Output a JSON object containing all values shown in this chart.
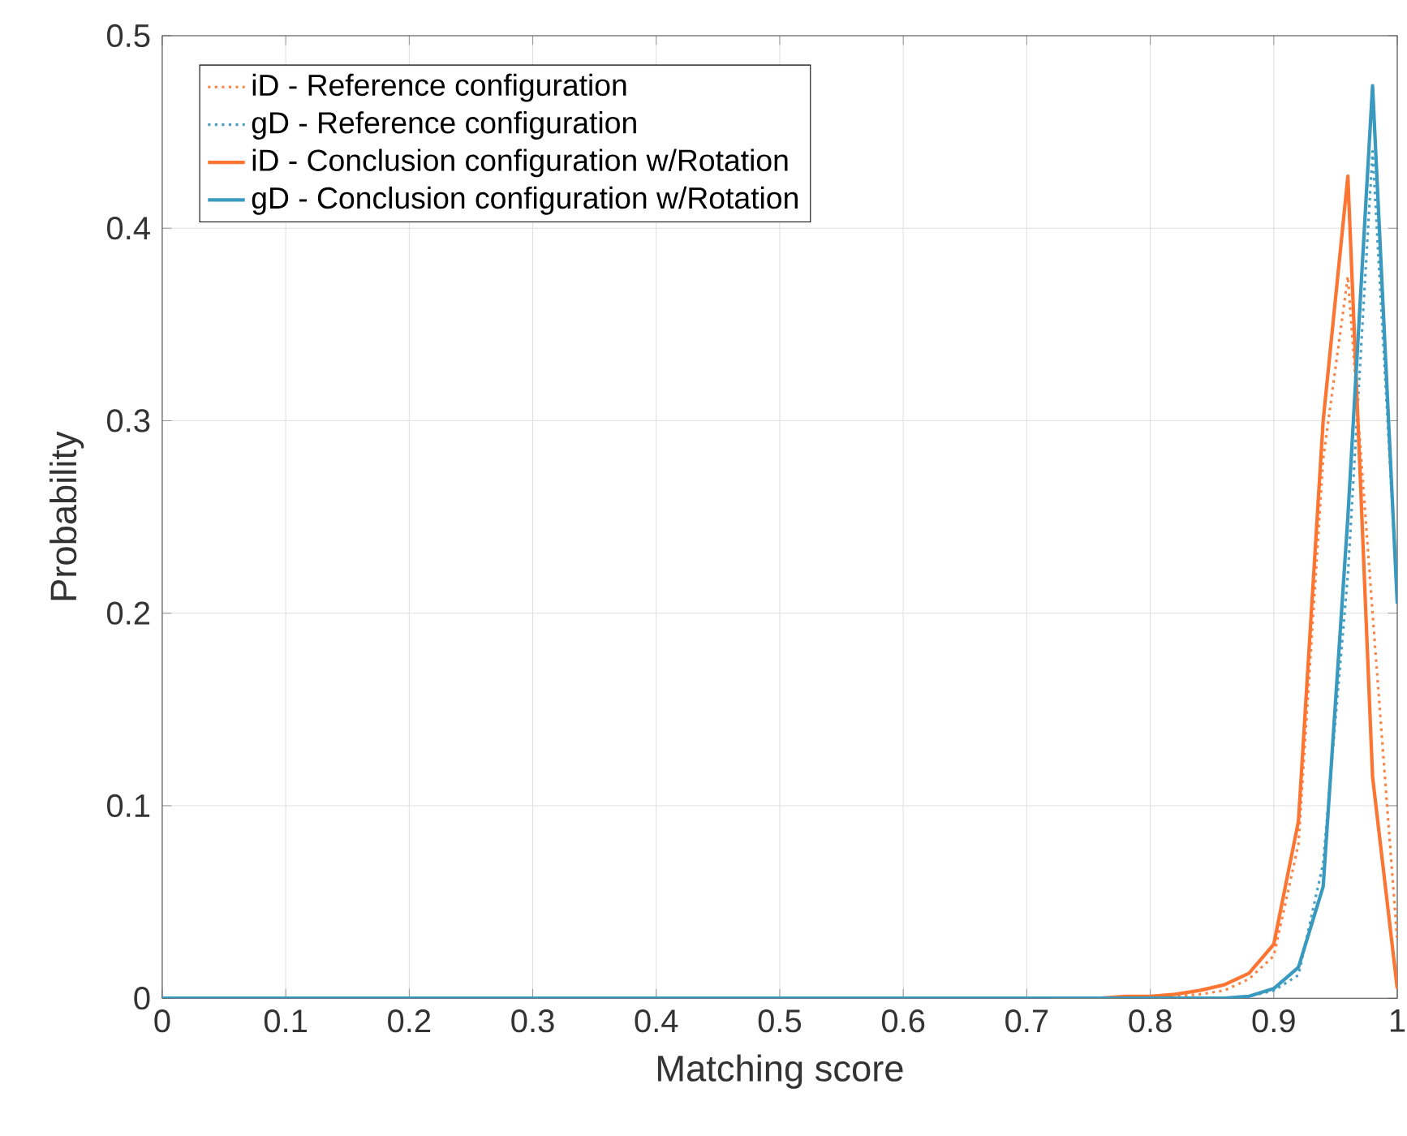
{
  "chart_data": {
    "type": "line",
    "xlabel": "Matching score",
    "ylabel": "Probability",
    "x": [
      0,
      0.02,
      0.04,
      0.06,
      0.08,
      0.1,
      0.12,
      0.14,
      0.16,
      0.18,
      0.2,
      0.22,
      0.24,
      0.26,
      0.28,
      0.3,
      0.32,
      0.34,
      0.36,
      0.38,
      0.4,
      0.42,
      0.44,
      0.46,
      0.48,
      0.5,
      0.52,
      0.54,
      0.56,
      0.58,
      0.6,
      0.62,
      0.64,
      0.66,
      0.68,
      0.7,
      0.72,
      0.74,
      0.76,
      0.78,
      0.8,
      0.82,
      0.84,
      0.86,
      0.88,
      0.9,
      0.92,
      0.94,
      0.96,
      0.98,
      1
    ],
    "series": [
      {
        "name": "iD - Reference configuration",
        "color": "#f98446",
        "line_style": "dotted",
        "values": [
          null,
          null,
          null,
          null,
          null,
          null,
          null,
          null,
          null,
          null,
          null,
          null,
          null,
          null,
          null,
          null,
          null,
          null,
          null,
          null,
          null,
          null,
          null,
          null,
          null,
          null,
          null,
          null,
          null,
          null,
          null,
          null,
          null,
          null,
          null,
          null,
          null,
          null,
          null,
          null,
          0,
          0.001,
          0.002,
          0.004,
          0.01,
          0.022,
          0.08,
          0.28,
          0.375,
          0.2,
          0.03
        ]
      },
      {
        "name": "gD - Reference configuration",
        "color": "#4a9fc2",
        "line_style": "dotted",
        "values": [
          null,
          null,
          null,
          null,
          null,
          null,
          null,
          null,
          null,
          null,
          null,
          null,
          null,
          null,
          null,
          null,
          null,
          null,
          null,
          null,
          null,
          null,
          null,
          null,
          null,
          null,
          null,
          null,
          null,
          null,
          null,
          null,
          null,
          null,
          null,
          null,
          null,
          null,
          null,
          null,
          null,
          null,
          null,
          0,
          0.001,
          0.004,
          0.012,
          0.07,
          0.22,
          0.44,
          0.21
        ]
      },
      {
        "name": "iD - Conclusion configuration w/Rotation",
        "color": "#fd7532",
        "line_style": "solid",
        "values": [
          null,
          null,
          null,
          null,
          null,
          null,
          null,
          null,
          null,
          null,
          null,
          null,
          null,
          null,
          null,
          null,
          null,
          null,
          null,
          null,
          null,
          null,
          null,
          null,
          null,
          null,
          null,
          null,
          null,
          null,
          null,
          null,
          null,
          null,
          null,
          null,
          0,
          0,
          0,
          0.001,
          0.001,
          0.002,
          0.004,
          0.007,
          0.013,
          0.028,
          0.092,
          0.3,
          0.427,
          0.115,
          0.005
        ]
      },
      {
        "name": "gD - Conclusion configuration w/Rotation",
        "color": "#3a99bf",
        "line_style": "solid",
        "values": [
          0,
          0,
          0,
          0,
          0,
          0,
          0,
          0,
          0,
          0,
          0,
          0,
          0,
          0,
          0,
          0,
          0,
          0,
          0,
          0,
          0,
          0,
          0,
          0,
          0,
          0,
          0,
          0,
          0,
          0,
          0,
          0,
          0,
          0,
          0,
          0,
          0,
          0,
          0,
          0,
          0,
          0,
          0,
          0,
          0.001,
          0.005,
          0.016,
          0.058,
          0.25,
          0.474,
          0.205
        ]
      }
    ],
    "xlim": [
      0,
      1
    ],
    "ylim": [
      0,
      0.5
    ],
    "xticks": [
      0,
      0.1,
      0.2,
      0.3,
      0.4,
      0.5,
      0.6,
      0.7,
      0.8,
      0.9,
      1
    ],
    "yticks": [
      0,
      0.1,
      0.2,
      0.3,
      0.4,
      0.5
    ],
    "grid": true,
    "legend": "top left",
    "marker": "none"
  }
}
